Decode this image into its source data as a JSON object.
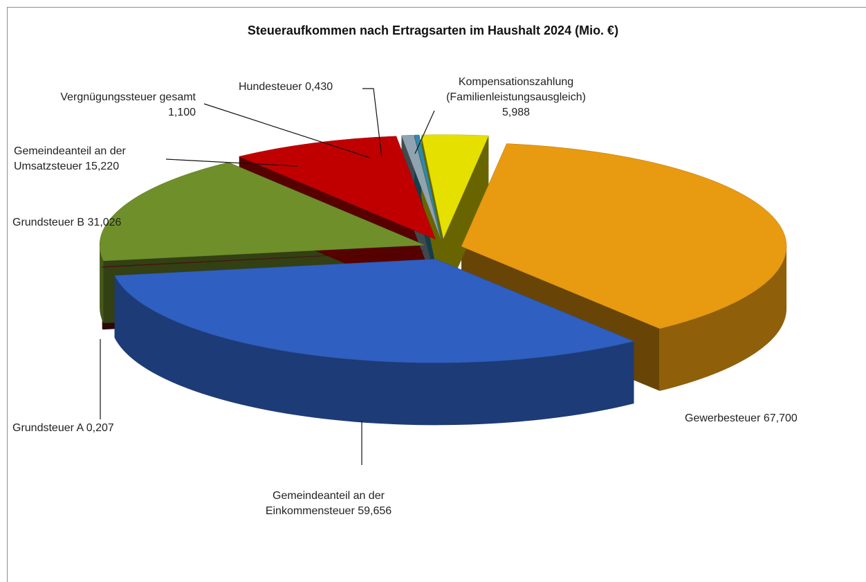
{
  "chart_data": {
    "type": "pie3d",
    "title": "Steueraufkommen nach Ertragsarten im Haushalt 2024 (Mio. €)",
    "categories": [
      "Gewerbesteuer",
      "Gemeindeanteil an der Einkommensteuer",
      "Grundsteuer A",
      "Grundsteuer B",
      "Gemeindeanteil an der Umsatzsteuer",
      "Vergnügungssteuer gesamt",
      "Hundesteuer",
      "Kompensationszahlung (Familienleistungsausgleich)"
    ],
    "values": [
      67.7,
      59.656,
      0.207,
      31.026,
      15.22,
      1.1,
      0.43,
      5.988
    ],
    "value_labels": [
      "67,700",
      "59,656",
      "0,207",
      "31,026",
      "15,220",
      "1,100",
      "0,430",
      "5,988"
    ],
    "colors": [
      "#e89a10",
      "#2f5fc0",
      "#5a1414",
      "#6f8f2a",
      "#c00000",
      "#8fa3b0",
      "#2e8aa8",
      "#e6e000"
    ]
  }
}
